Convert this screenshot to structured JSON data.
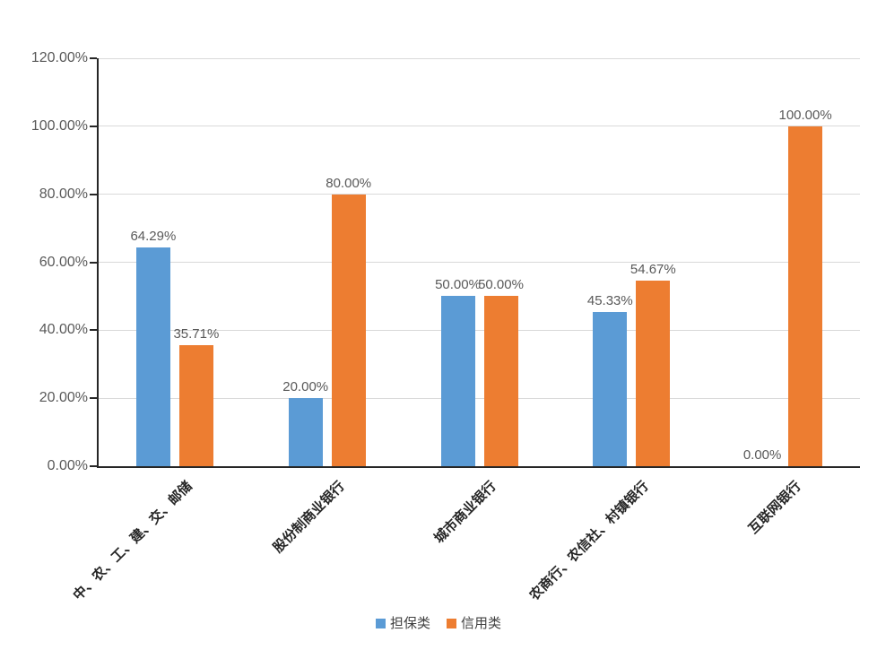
{
  "chart_data": {
    "type": "bar",
    "categories": [
      "中、农、工、建、交、邮储",
      "股份制商业银行",
      "城市商业银行",
      "农商行、农信社、村镇银行",
      "互联网银行"
    ],
    "series": [
      {
        "name": "担保类",
        "color": "#5B9BD5",
        "values": [
          64.29,
          20.0,
          50.0,
          45.33,
          0.0
        ],
        "labels": [
          "64.29%",
          "20.00%",
          "50.00%",
          "45.33%",
          "0.00%"
        ]
      },
      {
        "name": "信用类",
        "color": "#ED7D31",
        "values": [
          35.71,
          80.0,
          50.0,
          54.67,
          100.0
        ],
        "labels": [
          "35.71%",
          "80.00%",
          "50.00%",
          "54.67%",
          "100.00%"
        ]
      }
    ],
    "ylim": [
      0,
      120
    ],
    "y_ticks": [
      {
        "label": "0.00%",
        "value": 0
      },
      {
        "label": "20.00%",
        "value": 20
      },
      {
        "label": "40.00%",
        "value": 40
      },
      {
        "label": "60.00%",
        "value": 60
      },
      {
        "label": "80.00%",
        "value": 80
      },
      {
        "label": "100.00%",
        "value": 100
      },
      {
        "label": "120.00%",
        "value": 120
      }
    ],
    "grid": true,
    "legend_position": "bottom",
    "colors": {
      "series_guarantee": "#5B9BD5",
      "series_credit": "#ED7D31",
      "gridline": "#D9D9D9",
      "axis_line": "#262626",
      "tick_text": "#595959",
      "category_text": "#262626"
    }
  }
}
